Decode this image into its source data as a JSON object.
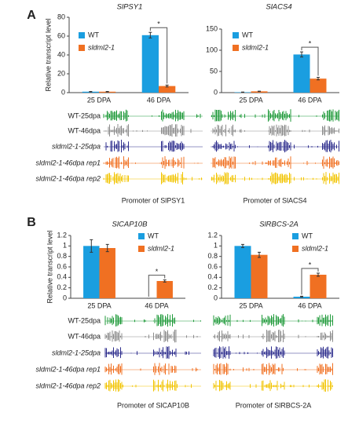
{
  "chart_data": [
    {
      "type": "bar",
      "title": "SlPSY1",
      "ylabel": "Relative transcript level",
      "categories": [
        "25 DPA",
        "46 DPA"
      ],
      "series": [
        {
          "name": "WT",
          "color": "#1a9ee0",
          "values": [
            1,
            61
          ],
          "errors": [
            0.3,
            3
          ]
        },
        {
          "name": "sldml2-1",
          "color": "#f07022",
          "values": [
            1,
            7
          ],
          "errors": [
            0.3,
            1
          ]
        }
      ],
      "ylim": [
        0,
        80
      ],
      "yticks": [
        0,
        20,
        40,
        60,
        80
      ],
      "annotation": "*"
    },
    {
      "type": "bar",
      "title": "SlACS4",
      "categories": [
        "25 DPA",
        "46 DPA"
      ],
      "series": [
        {
          "name": "WT",
          "color": "#1a9ee0",
          "values": [
            1,
            90
          ],
          "errors": [
            0.5,
            6
          ]
        },
        {
          "name": "sldml2-1",
          "color": "#f07022",
          "values": [
            3,
            33
          ],
          "errors": [
            0.5,
            3
          ]
        }
      ],
      "ylim": [
        0,
        150
      ],
      "yticks": [
        0,
        50,
        100,
        150
      ],
      "annotation": "*"
    },
    {
      "type": "bar",
      "title": "SlCAP10B",
      "ylabel": "Relative transcript level",
      "categories": [
        "25 DPA",
        "46 DPA"
      ],
      "series": [
        {
          "name": "WT",
          "color": "#1a9ee0",
          "values": [
            1.0,
            0
          ],
          "errors": [
            0.12,
            0
          ]
        },
        {
          "name": "sldml2-1",
          "color": "#f07022",
          "values": [
            0.96,
            0.33
          ],
          "errors": [
            0.07,
            0.02
          ]
        }
      ],
      "ylim": [
        0,
        1.2
      ],
      "yticks": [
        0,
        0.2,
        0.4,
        0.6,
        0.8,
        1,
        1.2
      ],
      "annotation": "*"
    },
    {
      "type": "bar",
      "title": "SlRBCS-2A",
      "categories": [
        "25 DPA",
        "46 DPA"
      ],
      "series": [
        {
          "name": "WT",
          "color": "#1a9ee0",
          "values": [
            1.0,
            0.03
          ],
          "errors": [
            0.03,
            0.01
          ]
        },
        {
          "name": "sldml2-1",
          "color": "#f07022",
          "values": [
            0.83,
            0.45
          ],
          "errors": [
            0.05,
            0.03
          ]
        }
      ],
      "ylim": [
        0,
        1.2
      ],
      "yticks": [
        0,
        0.2,
        0.4,
        0.6,
        0.8,
        1,
        1.2
      ],
      "annotation": "*"
    }
  ],
  "panels": [
    {
      "label": "A",
      "tracks": [
        "WT-25dpa",
        "WT-46dpa",
        "sldml2-1-25dpa",
        "sldml2-1-46dpa rep1",
        "sldml2-1-46dpa rep2"
      ],
      "captions": [
        "Promoter of SlPSY1",
        "Promoter of SlACS4"
      ]
    },
    {
      "label": "B",
      "tracks": [
        "WT-25dpa",
        "WT-46dpa",
        "sldml2-1-25dpa",
        "sldml2-1-46dpa rep1",
        "sldml2-1-46dpa rep2"
      ],
      "captions": [
        "Promoter of SlCAP10B",
        "Promoter of SlRBCS-2A"
      ]
    }
  ]
}
